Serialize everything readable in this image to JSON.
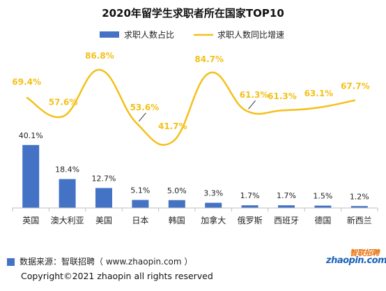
{
  "chart_data": {
    "type": "bar+line",
    "title": "2020年留学生求职者所在国家TOP10",
    "categories": [
      "英国",
      "澳大利亚",
      "美国",
      "日本",
      "韩国",
      "加拿大",
      "俄罗斯",
      "西班牙",
      "德国",
      "新西兰"
    ],
    "series": [
      {
        "name": "求职人数占比",
        "type": "bar",
        "values": [
          40.1,
          18.4,
          12.7,
          5.1,
          5.0,
          3.3,
          1.7,
          1.7,
          1.5,
          1.2
        ],
        "labels": [
          "40.1%",
          "18.4%",
          "12.7%",
          "5.1%",
          "5.0%",
          "3.3%",
          "1.7%",
          "1.7%",
          "1.5%",
          "1.2%"
        ],
        "color": "#4472c4"
      },
      {
        "name": "求职人数同比增速",
        "type": "line",
        "smooth": true,
        "values": [
          69.4,
          57.6,
          86.8,
          53.6,
          41.7,
          84.7,
          61.3,
          61.3,
          63.1,
          67.7
        ],
        "labels": [
          "69.4%",
          "57.6%",
          "86.8%",
          "53.6%",
          "41.7%",
          "84.7%",
          "61.3%",
          "61.3%",
          "63.1%",
          "67.7%"
        ],
        "color": "#f4c019"
      }
    ],
    "legend": "top-center",
    "grid": false
  },
  "footer": {
    "source": "数据来源：智联招聘（ www.zhaopin.com ）",
    "copyright": "Copyright©2021 zhaopin all rights reserved"
  },
  "logo": {
    "name": "智联招聘",
    "domain": "zhaopin.com"
  }
}
